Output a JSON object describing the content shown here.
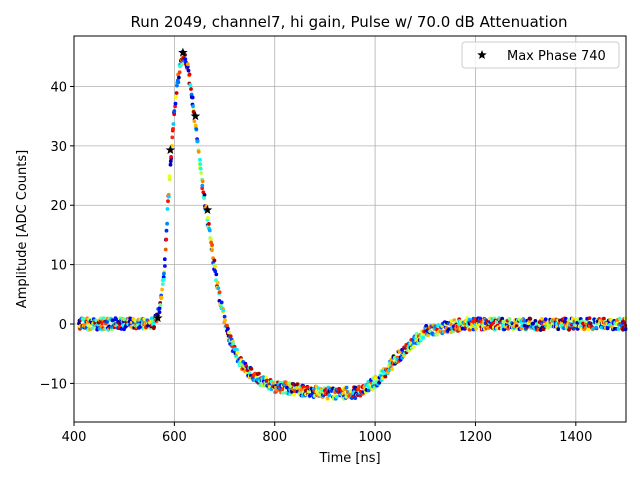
{
  "chart_data": {
    "type": "scatter",
    "title": "Run 2049, channel7, hi gain, Pulse w/ 70.0 dB Attenuation",
    "xlabel": "Time [ns]",
    "ylabel": "Amplitude [ADC Counts]",
    "xlim": [
      400,
      1500
    ],
    "ylim": [
      -16.5,
      48.5
    ],
    "xticks": [
      400,
      600,
      800,
      1000,
      1200,
      1400
    ],
    "yticks": [
      -10,
      0,
      10,
      20,
      30,
      40
    ],
    "grid": true,
    "legend": {
      "position": "top-right",
      "entries": [
        "Max Phase 740"
      ]
    },
    "waveform_curve": [
      [
        400,
        0
      ],
      [
        560,
        0
      ],
      [
        570,
        2
      ],
      [
        580,
        9
      ],
      [
        590,
        24
      ],
      [
        600,
        36
      ],
      [
        610,
        43
      ],
      [
        618,
        45.5
      ],
      [
        625,
        44
      ],
      [
        635,
        38.5
      ],
      [
        645,
        31
      ],
      [
        655,
        24
      ],
      [
        665,
        18.5
      ],
      [
        675,
        12.5
      ],
      [
        685,
        7
      ],
      [
        695,
        2.5
      ],
      [
        705,
        -1
      ],
      [
        720,
        -4.5
      ],
      [
        740,
        -7.5
      ],
      [
        760,
        -9
      ],
      [
        800,
        -10.5
      ],
      [
        860,
        -11.2
      ],
      [
        920,
        -11.8
      ],
      [
        960,
        -11.5
      ],
      [
        990,
        -10.5
      ],
      [
        1010,
        -9
      ],
      [
        1040,
        -6
      ],
      [
        1070,
        -3.5
      ],
      [
        1100,
        -1.3
      ],
      [
        1130,
        -0.7
      ],
      [
        1180,
        0
      ],
      [
        1300,
        0
      ],
      [
        1500,
        0
      ]
    ],
    "max_phase_points": {
      "name": "Max Phase 740",
      "x": [
        567,
        592,
        617,
        642,
        666
      ],
      "y": [
        1.0,
        29.3,
        45.7,
        35.0,
        19.2
      ]
    }
  }
}
